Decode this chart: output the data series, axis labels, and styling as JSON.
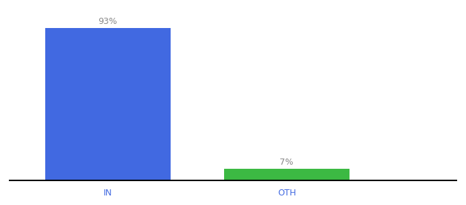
{
  "categories": [
    "IN",
    "OTH"
  ],
  "values": [
    93,
    7
  ],
  "bar_colors": [
    "#4169e1",
    "#3cb943"
  ],
  "labels": [
    "93%",
    "7%"
  ],
  "ylim": [
    0,
    100
  ],
  "background_color": "#ffffff",
  "bar_width": 0.28,
  "label_fontsize": 9,
  "tick_fontsize": 9,
  "positions": [
    0.22,
    0.62
  ]
}
